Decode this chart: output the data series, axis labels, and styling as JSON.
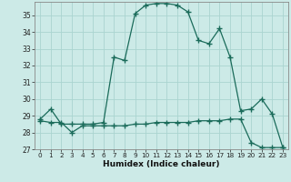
{
  "title": "",
  "xlabel": "Humidex (Indice chaleur)",
  "ylabel": "",
  "background_color": "#cceae7",
  "line_color": "#1a6b5a",
  "grid_color": "#aad4d0",
  "ylim": [
    27,
    35.8
  ],
  "xlim": [
    -0.5,
    23.5
  ],
  "yticks": [
    27,
    28,
    29,
    30,
    31,
    32,
    33,
    34,
    35
  ],
  "xticks": [
    0,
    1,
    2,
    3,
    4,
    5,
    6,
    7,
    8,
    9,
    10,
    11,
    12,
    13,
    14,
    15,
    16,
    17,
    18,
    19,
    20,
    21,
    22,
    23
  ],
  "line1_x": [
    0,
    1,
    2,
    3,
    4,
    5,
    6,
    7,
    8,
    9,
    10,
    11,
    12,
    13,
    14,
    15,
    16,
    17,
    18,
    19,
    20,
    21,
    22,
    23
  ],
  "line1_y": [
    28.8,
    29.4,
    28.5,
    28.5,
    28.5,
    28.5,
    28.6,
    32.5,
    32.3,
    35.1,
    35.6,
    35.7,
    35.7,
    35.6,
    35.2,
    33.5,
    33.3,
    34.2,
    32.5,
    29.3,
    29.4,
    30.0,
    29.1,
    27.1
  ],
  "line2_x": [
    0,
    1,
    2,
    3,
    4,
    5,
    6,
    7,
    8,
    9,
    10,
    11,
    12,
    13,
    14,
    15,
    16,
    17,
    18,
    19,
    20,
    21,
    22,
    23
  ],
  "line2_y": [
    28.7,
    28.6,
    28.6,
    28.0,
    28.4,
    28.4,
    28.4,
    28.4,
    28.4,
    28.5,
    28.5,
    28.6,
    28.6,
    28.6,
    28.6,
    28.7,
    28.7,
    28.7,
    28.8,
    28.8,
    27.4,
    27.1,
    27.1,
    27.1
  ],
  "marker": "+",
  "markersize": 4,
  "linewidth": 0.9
}
